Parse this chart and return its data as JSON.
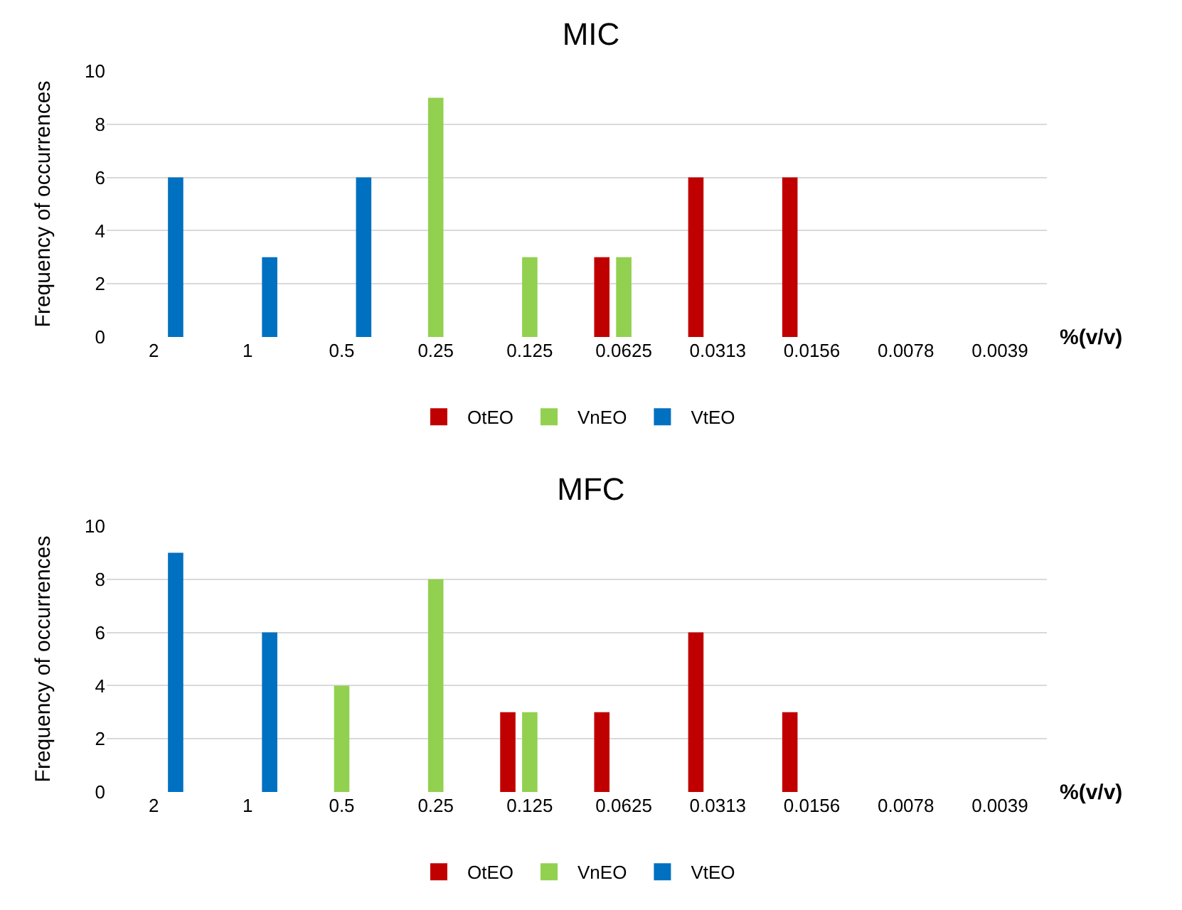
{
  "chart_data": [
    {
      "type": "bar",
      "title": "MIC",
      "xlabel": "%(v/v)",
      "ylabel": "Frequency of occurrences",
      "categories": [
        "2",
        "1",
        "0.5",
        "0.25",
        "0.125",
        "0.0625",
        "0.0313",
        "0.0156",
        "0.0078",
        "0.0039"
      ],
      "ylim": [
        0,
        10
      ],
      "yticks": [
        0,
        2,
        4,
        6,
        8,
        10
      ],
      "grid": "y",
      "legend": "bottom",
      "series": [
        {
          "name": "OtEO",
          "color": "#c00000",
          "values": [
            null,
            null,
            null,
            null,
            null,
            3,
            6,
            6,
            null,
            null
          ]
        },
        {
          "name": "VnEO",
          "color": "#92d050",
          "values": [
            null,
            null,
            null,
            9,
            3,
            3,
            null,
            null,
            null,
            null
          ]
        },
        {
          "name": "VtEO",
          "color": "#0070c0",
          "values": [
            6,
            3,
            6,
            null,
            null,
            null,
            null,
            null,
            null,
            null
          ]
        }
      ]
    },
    {
      "type": "bar",
      "title": "MFC",
      "xlabel": "%(v/v)",
      "ylabel": "Frequency of occurrences",
      "categories": [
        "2",
        "1",
        "0.5",
        "0.25",
        "0.125",
        "0.0625",
        "0.0313",
        "0.0156",
        "0.0078",
        "0.0039"
      ],
      "ylim": [
        0,
        10
      ],
      "yticks": [
        0,
        2,
        4,
        6,
        8,
        10
      ],
      "grid": "y",
      "legend": "bottom",
      "series": [
        {
          "name": "OtEO",
          "color": "#c00000",
          "values": [
            null,
            null,
            null,
            null,
            3,
            3,
            6,
            3,
            null,
            null
          ]
        },
        {
          "name": "VnEO",
          "color": "#92d050",
          "values": [
            null,
            null,
            4,
            8,
            3,
            null,
            null,
            null,
            null,
            null
          ]
        },
        {
          "name": "VtEO",
          "color": "#0070c0",
          "values": [
            9,
            6,
            null,
            null,
            null,
            null,
            null,
            null,
            null,
            null
          ]
        }
      ]
    }
  ]
}
